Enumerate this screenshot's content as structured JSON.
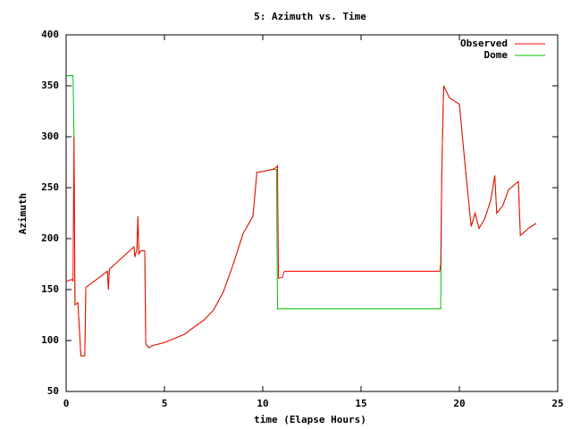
{
  "chart_data": {
    "type": "line",
    "title": "5: Azimuth vs. Time",
    "x_label": "time (Elapse Hours)",
    "y_label": "Azimuth",
    "x": [
      0,
      0.3,
      0.35,
      0.4,
      0.45,
      0.6,
      0.75,
      0.95,
      1.0,
      2.1,
      2.15,
      2.2,
      3.45,
      3.5,
      3.6,
      3.65,
      3.7,
      3.8,
      4.0,
      4.05,
      4.2,
      4.4,
      5,
      6,
      7,
      7.5,
      8,
      8.5,
      9,
      9.5,
      9.7,
      10,
      10.5,
      10.7,
      10.75,
      10.8,
      11.0,
      11.1,
      19.0,
      19.05,
      19.1,
      19.2,
      19.5,
      20,
      20.3,
      20.6,
      20.8,
      21,
      21.3,
      21.6,
      21.8,
      21.9,
      22.2,
      22.5,
      23,
      23.1,
      23.5,
      23.9
    ],
    "series": [
      {
        "name": "Observed",
        "color": "#ff0000",
        "values": [
          158,
          160,
          158,
          300,
          135,
          137,
          85,
          85,
          152,
          168,
          150,
          170,
          192,
          182,
          190,
          222,
          185,
          188,
          188,
          97,
          93,
          95,
          98,
          106,
          120,
          130,
          148,
          175,
          205,
          222,
          265,
          266,
          268,
          270,
          272,
          161,
          162,
          168,
          168,
          175,
          260,
          350,
          338,
          332,
          270,
          212,
          225,
          210,
          220,
          238,
          262,
          225,
          232,
          248,
          256,
          203,
          210,
          215
        ]
      },
      {
        "name": "Dome",
        "color": "#00c000",
        "values": [
          360,
          360,
          360,
          300,
          135,
          137,
          85,
          85,
          152,
          168,
          150,
          170,
          192,
          182,
          190,
          222,
          185,
          188,
          188,
          97,
          93,
          95,
          98,
          106,
          120,
          130,
          148,
          175,
          205,
          222,
          265,
          266,
          268,
          268,
          131,
          131,
          131,
          131,
          131,
          131,
          260,
          350,
          338,
          332,
          270,
          212,
          225,
          210,
          220,
          238,
          262,
          225,
          232,
          248,
          256,
          203,
          210,
          215
        ]
      }
    ],
    "xlim": [
      0,
      25
    ],
    "xticks": [
      0,
      5,
      10,
      15,
      20,
      25
    ],
    "ylim": [
      50,
      400
    ],
    "yticks": [
      50,
      100,
      150,
      200,
      250,
      300,
      350,
      400
    ],
    "legend": "top-right"
  }
}
